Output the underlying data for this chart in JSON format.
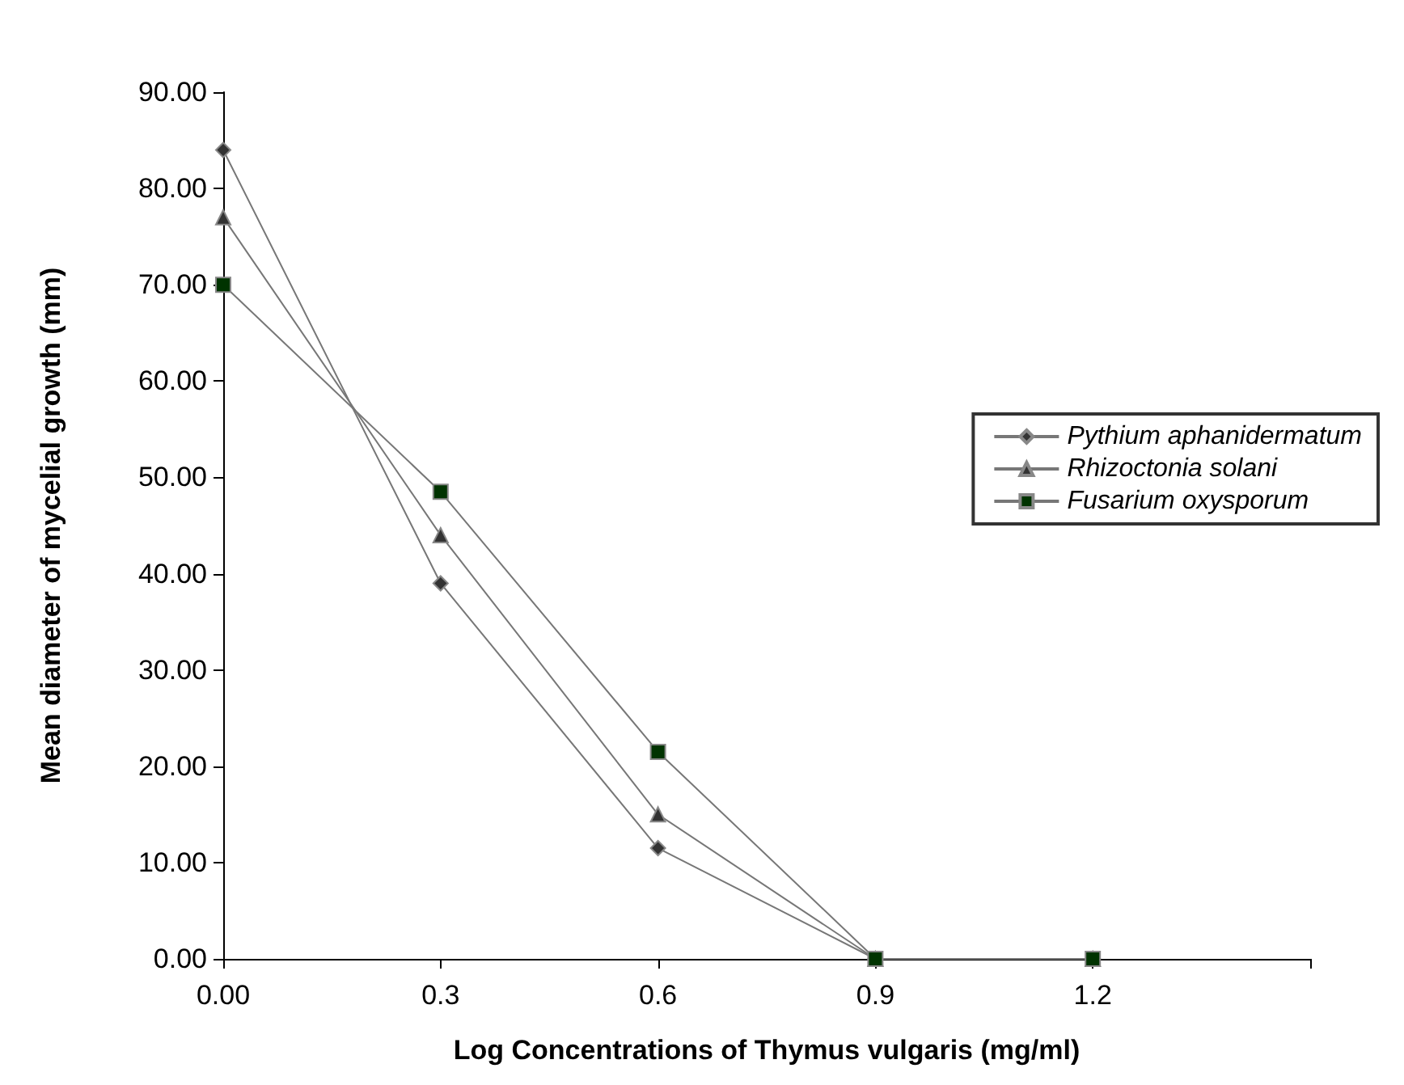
{
  "chart_data": {
    "type": "line",
    "xlabel": "Log Concentrations of Thymus vulgaris (mg/ml)",
    "ylabel": "Mean diameter of mycelial growth (mm)",
    "x": [
      0,
      0.3,
      0.6,
      0.9,
      1.2
    ],
    "series": [
      {
        "name": "Pythium aphanidermatum",
        "color": "#333333",
        "marker": "diamond",
        "values": [
          84,
          39,
          11.5,
          0,
          0
        ]
      },
      {
        "name": "Rhizoctonia solani",
        "color": "#333333",
        "marker": "triangle",
        "values": [
          77,
          44,
          15,
          0,
          0
        ]
      },
      {
        "name": "Fusarium oxysporum",
        "color": "#003300",
        "marker": "square",
        "values": [
          70,
          48.5,
          21.5,
          0,
          0
        ]
      }
    ],
    "xlim": [
      0,
      1.5
    ],
    "xticks": [
      {
        "value": 0,
        "label": "0.00"
      },
      0.3,
      0.6,
      0.9,
      1.2,
      {
        "value": 1.5,
        "label": null
      }
    ],
    "ylim": [
      0,
      90
    ],
    "yticks": [
      {
        "value": 0,
        "label": "0.00"
      },
      {
        "value": 10,
        "label": "10.00"
      },
      {
        "value": 20,
        "label": "20.00"
      },
      {
        "value": 30,
        "label": "30.00"
      },
      {
        "value": 40,
        "label": "40.00"
      },
      {
        "value": 50,
        "label": "50.00"
      },
      {
        "value": 60,
        "label": "60.00"
      },
      {
        "value": 70,
        "label": "70.00"
      },
      {
        "value": 80,
        "label": "80.00"
      },
      {
        "value": 90,
        "label": "90.00"
      }
    ],
    "grid": false,
    "legend": "right",
    "line_style": "solid"
  }
}
